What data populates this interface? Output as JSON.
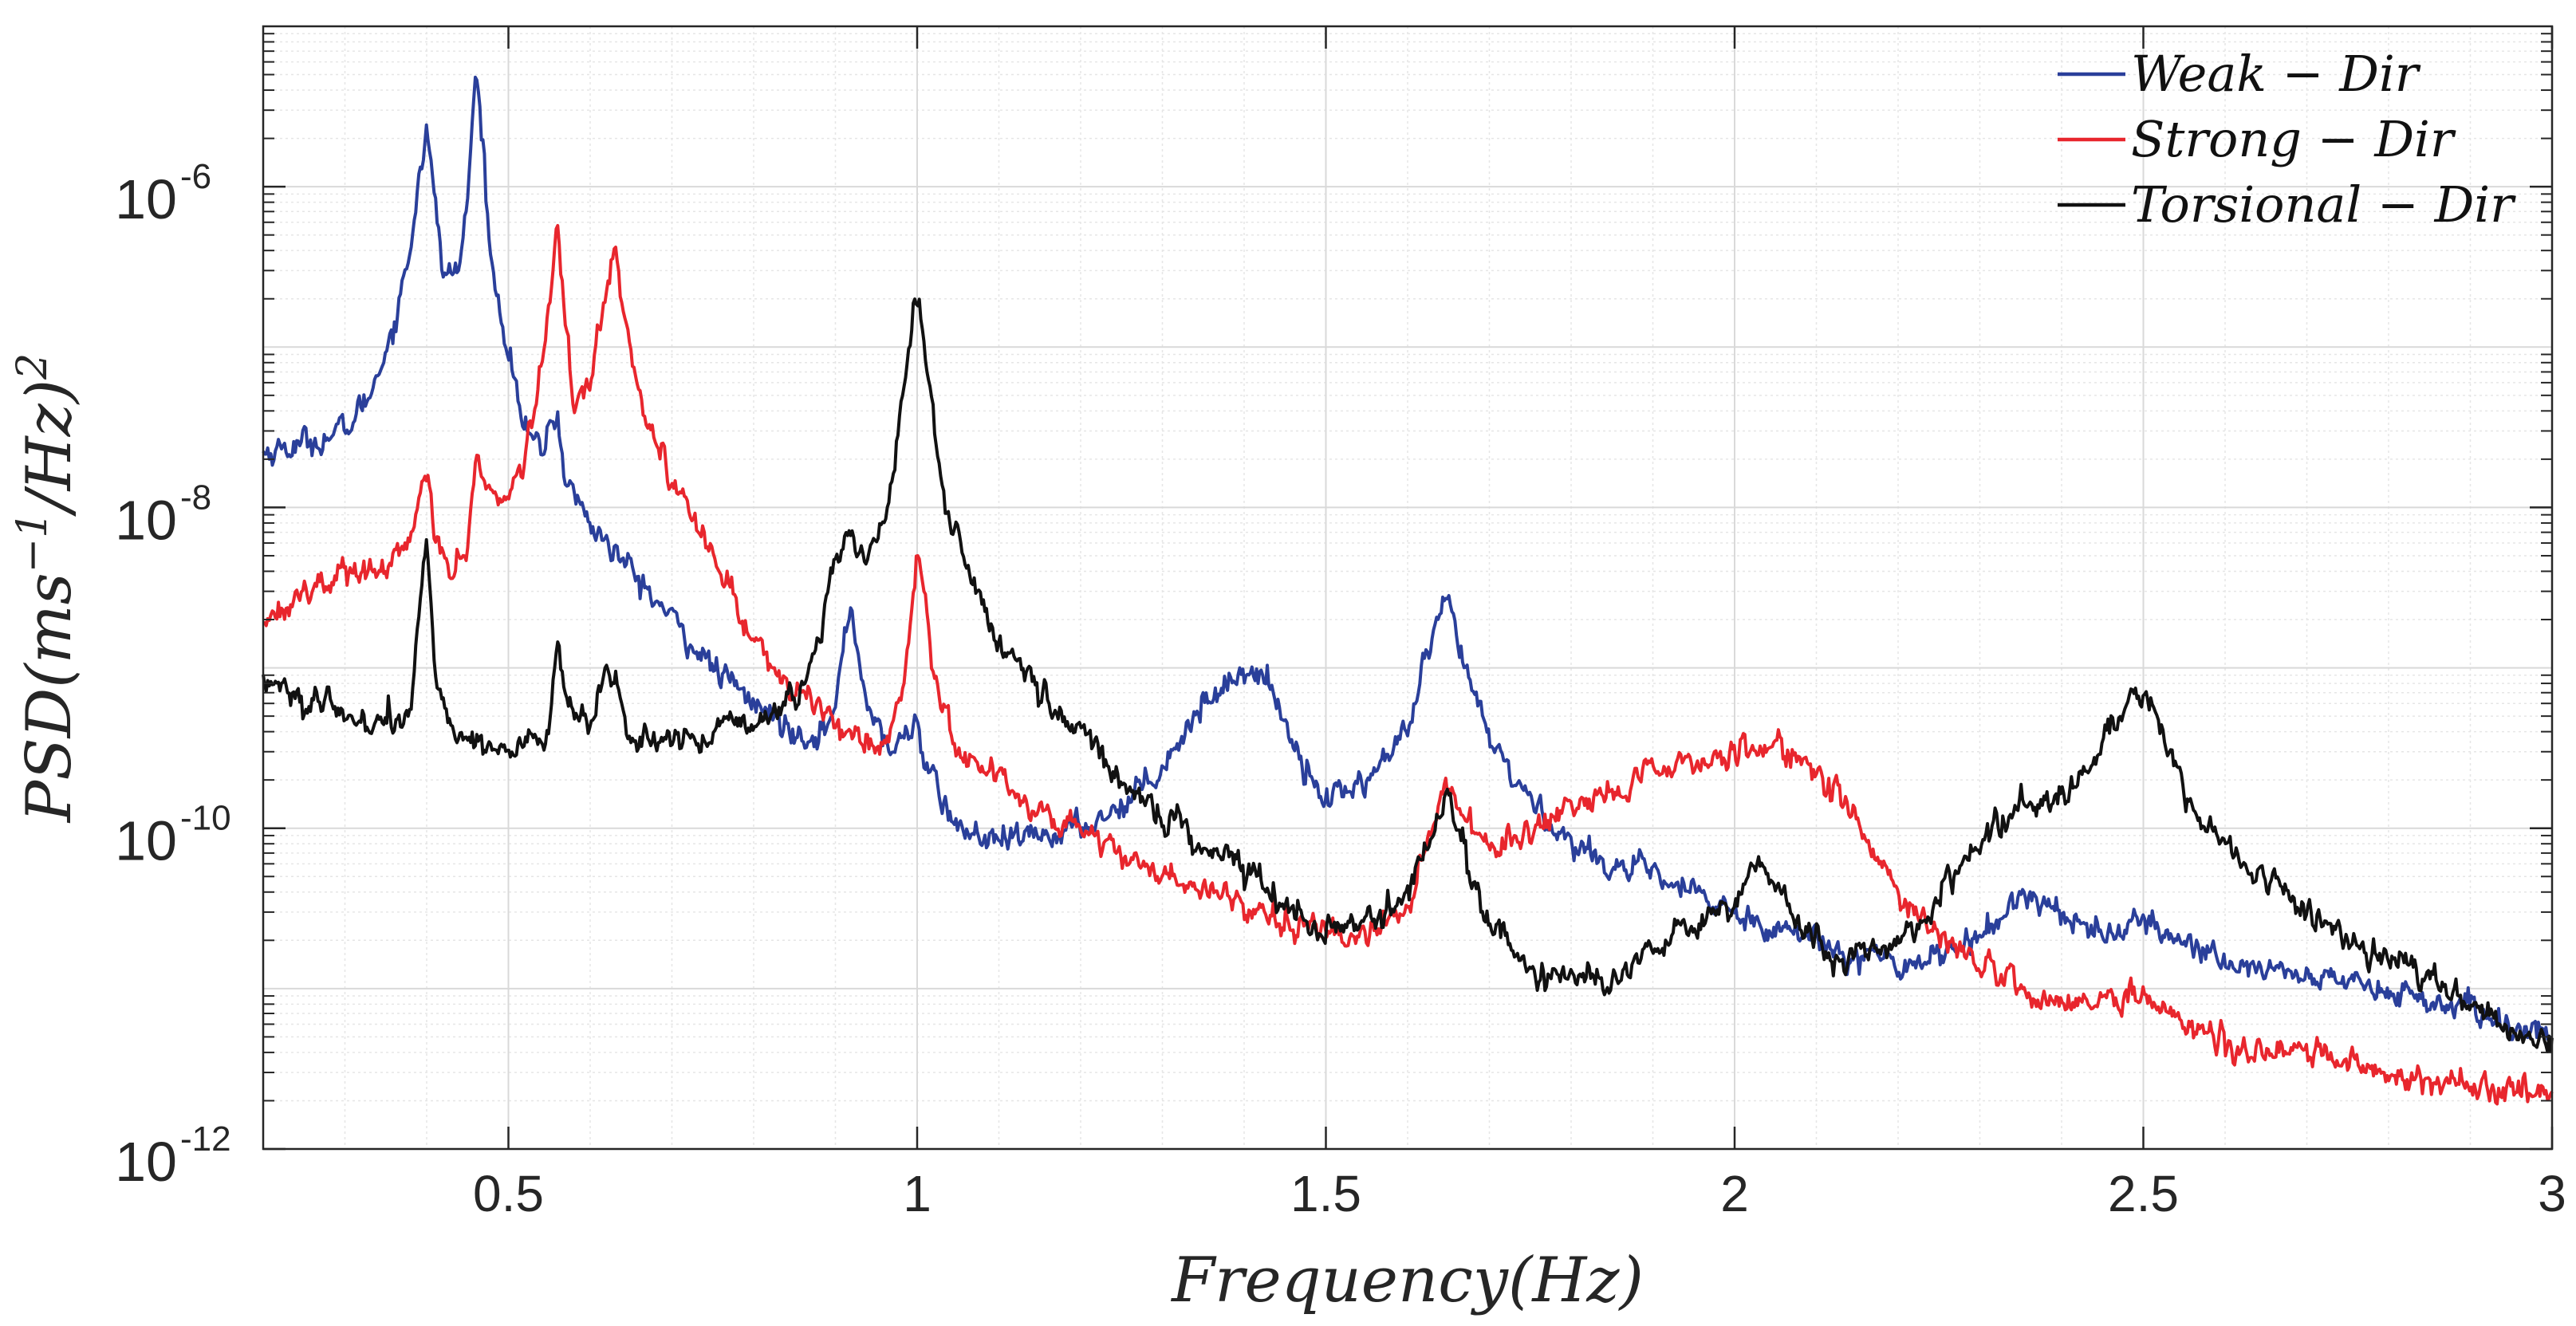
{
  "chart_data": {
    "type": "line",
    "xscale": "linear",
    "yscale": "log",
    "xlim": [
      0.2,
      3.0
    ],
    "ylim": [
      1e-12,
      1e-05
    ],
    "xticks": [
      0.5,
      1.0,
      1.5,
      2.0,
      2.5,
      3.0
    ],
    "xtick_labels": [
      "0.5",
      "1",
      "1.5",
      "2",
      "2.5",
      "3"
    ],
    "yticks": [
      {
        "value": 1e-06,
        "base": "10",
        "exp": "-6"
      },
      {
        "value": 1e-08,
        "base": "10",
        "exp": "-8"
      },
      {
        "value": 1e-10,
        "base": "10",
        "exp": "-10"
      },
      {
        "value": 1e-12,
        "base": "10",
        "exp": "-12"
      }
    ],
    "xlabel": "Frequency(Hz)",
    "ylabel": "PSD(ms",
    "ylabel_parts": {
      "main": "PSD(ms",
      "sup1": "−1",
      "mid": "/Hz)",
      "sup2": "2"
    },
    "grid": true,
    "legend_position": "top-right",
    "series": [
      {
        "name": "Weak − Dir",
        "color": "#2a3f9a",
        "points": [
          [
            0.2,
            2.2e-08
          ],
          [
            0.25,
            2.5e-08
          ],
          [
            0.3,
            3e-08
          ],
          [
            0.33,
            5e-08
          ],
          [
            0.36,
            1.4e-07
          ],
          [
            0.38,
            4e-07
          ],
          [
            0.39,
            1.2e-06
          ],
          [
            0.4,
            2.2e-06
          ],
          [
            0.41,
            8e-07
          ],
          [
            0.42,
            3e-07
          ],
          [
            0.43,
            2.8e-07
          ],
          [
            0.44,
            3.2e-07
          ],
          [
            0.45,
            8e-07
          ],
          [
            0.46,
            5.5e-06
          ],
          [
            0.47,
            1.5e-06
          ],
          [
            0.48,
            3e-07
          ],
          [
            0.5,
            1e-07
          ],
          [
            0.52,
            3e-08
          ],
          [
            0.54,
            2.2e-08
          ],
          [
            0.55,
            3.2e-08
          ],
          [
            0.56,
            3.7e-08
          ],
          [
            0.57,
            1.5e-08
          ],
          [
            0.6,
            8e-09
          ],
          [
            0.65,
            4e-09
          ],
          [
            0.7,
            2e-09
          ],
          [
            0.75,
            1e-09
          ],
          [
            0.8,
            6e-10
          ],
          [
            0.85,
            4e-10
          ],
          [
            0.88,
            4e-10
          ],
          [
            0.9,
            5e-10
          ],
          [
            0.91,
            1.5e-09
          ],
          [
            0.92,
            2.5e-09
          ],
          [
            0.93,
            1e-09
          ],
          [
            0.95,
            4e-10
          ],
          [
            0.97,
            3e-10
          ],
          [
            0.99,
            4e-10
          ],
          [
            1.0,
            5e-10
          ],
          [
            1.01,
            2.5e-10
          ],
          [
            1.03,
            1.5e-10
          ],
          [
            1.05,
            1e-10
          ],
          [
            1.1,
            8e-11
          ],
          [
            1.2,
            1e-10
          ],
          [
            1.25,
            1.4e-10
          ],
          [
            1.3,
            2.5e-10
          ],
          [
            1.35,
            6e-10
          ],
          [
            1.4,
            1e-09
          ],
          [
            1.43,
            8e-10
          ],
          [
            1.46,
            3.5e-10
          ],
          [
            1.5,
            1.5e-10
          ],
          [
            1.55,
            2e-10
          ],
          [
            1.6,
            4e-10
          ],
          [
            1.63,
            1.5e-09
          ],
          [
            1.65,
            2.5e-09
          ],
          [
            1.67,
            1e-09
          ],
          [
            1.7,
            3.5e-10
          ],
          [
            1.75,
            1.5e-10
          ],
          [
            1.8,
            8e-11
          ],
          [
            1.85,
            6e-11
          ],
          [
            1.9,
            5e-11
          ],
          [
            2.0,
            3e-11
          ],
          [
            2.1,
            2e-11
          ],
          [
            2.2,
            1.4e-11
          ],
          [
            2.3,
            2e-11
          ],
          [
            2.35,
            4e-11
          ],
          [
            2.4,
            3e-11
          ],
          [
            2.45,
            2.2e-11
          ],
          [
            2.5,
            2.5e-11
          ],
          [
            2.55,
            2e-11
          ],
          [
            2.6,
            1.5e-11
          ],
          [
            2.7,
            1.2e-11
          ],
          [
            2.8,
            1e-11
          ],
          [
            2.9,
            7e-12
          ],
          [
            3.0,
            5e-12
          ]
        ]
      },
      {
        "name": "Strong − Dir",
        "color": "#e8262d",
        "points": [
          [
            0.2,
            2e-09
          ],
          [
            0.25,
            3e-09
          ],
          [
            0.3,
            4e-09
          ],
          [
            0.35,
            4e-09
          ],
          [
            0.38,
            6e-09
          ],
          [
            0.39,
            1.2e-08
          ],
          [
            0.4,
            1.6e-08
          ],
          [
            0.41,
            6e-09
          ],
          [
            0.43,
            4e-09
          ],
          [
            0.45,
            6e-09
          ],
          [
            0.46,
            2e-08
          ],
          [
            0.47,
            1.5e-08
          ],
          [
            0.49,
            1e-08
          ],
          [
            0.51,
            1.5e-08
          ],
          [
            0.53,
            3e-08
          ],
          [
            0.55,
            2e-07
          ],
          [
            0.56,
            5e-07
          ],
          [
            0.57,
            1.5e-07
          ],
          [
            0.58,
            4e-08
          ],
          [
            0.6,
            6e-08
          ],
          [
            0.62,
            2.5e-07
          ],
          [
            0.63,
            4.5e-07
          ],
          [
            0.64,
            2e-07
          ],
          [
            0.66,
            5e-08
          ],
          [
            0.7,
            1.5e-08
          ],
          [
            0.75,
            5e-09
          ],
          [
            0.8,
            1.5e-09
          ],
          [
            0.85,
            7e-10
          ],
          [
            0.9,
            5e-10
          ],
          [
            0.95,
            3e-10
          ],
          [
            0.98,
            6e-10
          ],
          [
            1.0,
            4.5e-09
          ],
          [
            1.01,
            3e-09
          ],
          [
            1.02,
            1e-09
          ],
          [
            1.05,
            3e-10
          ],
          [
            1.1,
            2e-10
          ],
          [
            1.15,
            1.3e-10
          ],
          [
            1.2,
            1e-10
          ],
          [
            1.3,
            5e-11
          ],
          [
            1.4,
            3.5e-11
          ],
          [
            1.5,
            2.2e-11
          ],
          [
            1.55,
            2.2e-11
          ],
          [
            1.6,
            3e-11
          ],
          [
            1.64,
            1.5e-10
          ],
          [
            1.65,
            2e-10
          ],
          [
            1.67,
            1.2e-10
          ],
          [
            1.7,
            8e-11
          ],
          [
            1.75,
            9e-11
          ],
          [
            1.8,
            1.2e-10
          ],
          [
            1.85,
            1.6e-10
          ],
          [
            1.9,
            2.2e-10
          ],
          [
            2.0,
            3e-10
          ],
          [
            2.05,
            3.3e-10
          ],
          [
            2.1,
            2.5e-10
          ],
          [
            2.15,
            1e-10
          ],
          [
            2.2,
            4e-11
          ],
          [
            2.25,
            2.2e-11
          ],
          [
            2.3,
            1.4e-11
          ],
          [
            2.4,
            8e-12
          ],
          [
            2.45,
            8e-12
          ],
          [
            2.5,
            1e-11
          ],
          [
            2.55,
            6e-12
          ],
          [
            2.6,
            4.5e-12
          ],
          [
            2.7,
            4e-12
          ],
          [
            2.8,
            3e-12
          ],
          [
            2.9,
            2.5e-12
          ],
          [
            3.0,
            2.2e-12
          ]
        ]
      },
      {
        "name": "Torsional − Dir",
        "color": "#111111",
        "points": [
          [
            0.2,
            9e-10
          ],
          [
            0.25,
            6e-10
          ],
          [
            0.3,
            5e-10
          ],
          [
            0.35,
            4.5e-10
          ],
          [
            0.38,
            4.5e-10
          ],
          [
            0.39,
            2e-09
          ],
          [
            0.4,
            7e-09
          ],
          [
            0.41,
            1e-09
          ],
          [
            0.43,
            4e-10
          ],
          [
            0.47,
            3.5e-10
          ],
          [
            0.5,
            3e-10
          ],
          [
            0.55,
            4e-10
          ],
          [
            0.56,
            1.5e-09
          ],
          [
            0.57,
            6e-10
          ],
          [
            0.6,
            4e-10
          ],
          [
            0.62,
            1e-09
          ],
          [
            0.63,
            8e-10
          ],
          [
            0.65,
            3.5e-10
          ],
          [
            0.7,
            3.5e-10
          ],
          [
            0.75,
            4e-10
          ],
          [
            0.8,
            4.5e-10
          ],
          [
            0.85,
            6e-10
          ],
          [
            0.88,
            1.5e-09
          ],
          [
            0.9,
            5e-09
          ],
          [
            0.91,
            7e-09
          ],
          [
            0.93,
            5e-09
          ],
          [
            0.95,
            6e-09
          ],
          [
            0.97,
            1.5e-08
          ],
          [
            0.99,
            1e-07
          ],
          [
            1.0,
            2e-07
          ],
          [
            1.01,
            9e-08
          ],
          [
            1.03,
            1.5e-08
          ],
          [
            1.06,
            4e-09
          ],
          [
            1.1,
            1.5e-09
          ],
          [
            1.15,
            7e-10
          ],
          [
            1.2,
            4e-10
          ],
          [
            1.25,
            2e-10
          ],
          [
            1.3,
            1.2e-10
          ],
          [
            1.35,
            8e-11
          ],
          [
            1.4,
            6e-11
          ],
          [
            1.45,
            3.5e-11
          ],
          [
            1.5,
            2.2e-11
          ],
          [
            1.55,
            2.5e-11
          ],
          [
            1.6,
            4e-11
          ],
          [
            1.63,
            1e-10
          ],
          [
            1.65,
            1.6e-10
          ],
          [
            1.67,
            7e-11
          ],
          [
            1.7,
            2.5e-11
          ],
          [
            1.75,
            1.3e-11
          ],
          [
            1.8,
            1.1e-11
          ],
          [
            1.85,
            1.1e-11
          ],
          [
            1.9,
            2e-11
          ],
          [
            1.95,
            2.5e-11
          ],
          [
            2.0,
            3.5e-11
          ],
          [
            2.03,
            7e-11
          ],
          [
            2.05,
            4e-11
          ],
          [
            2.08,
            2.5e-11
          ],
          [
            2.12,
            1.5e-11
          ],
          [
            2.2,
            2e-11
          ],
          [
            2.25,
            3.5e-11
          ],
          [
            2.3,
            8e-11
          ],
          [
            2.35,
            1.5e-10
          ],
          [
            2.4,
            1.6e-10
          ],
          [
            2.45,
            3e-10
          ],
          [
            2.48,
            6e-10
          ],
          [
            2.5,
            7e-10
          ],
          [
            2.52,
            4e-10
          ],
          [
            2.55,
            1.5e-10
          ],
          [
            2.6,
            8e-11
          ],
          [
            2.65,
            5e-11
          ],
          [
            2.7,
            3e-11
          ],
          [
            2.75,
            2e-11
          ],
          [
            2.8,
            1.5e-11
          ],
          [
            2.85,
            1.1e-11
          ],
          [
            2.9,
            8e-12
          ],
          [
            2.95,
            5.5e-12
          ],
          [
            3.0,
            4.5e-12
          ]
        ]
      }
    ]
  }
}
